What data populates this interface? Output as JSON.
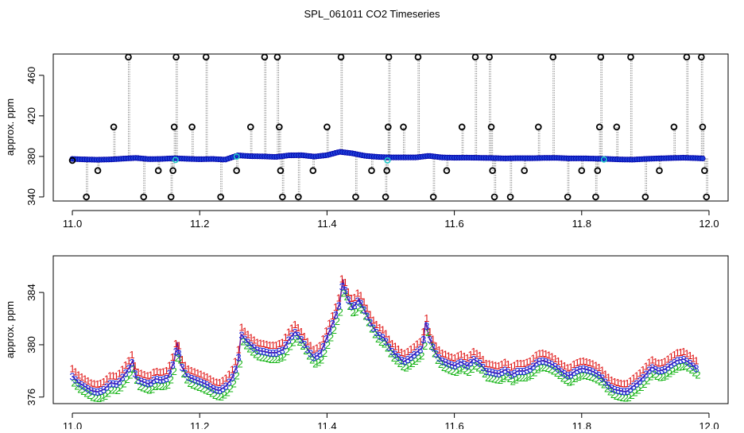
{
  "title": "SPL_061011  CO2 Timeseries",
  "colors": {
    "axis": "#000000",
    "point_fill": "#1f3fd6",
    "point_edge": "#0000aa",
    "flagged": "#22c8c8",
    "outlier": "#000000",
    "spike_line": "#999999",
    "level1": "#e01818",
    "level2": "#18b418",
    "level3": "#1c28d8",
    "connect_line": "#6a1a9a"
  },
  "chart_data": [
    {
      "type": "scatter",
      "name": "raw",
      "xlabel": "",
      "ylabel": "approx. ppm",
      "xlim": [
        10.97,
        12.03
      ],
      "ylim": [
        336,
        481
      ],
      "xticks": [
        "11.0",
        "11.2",
        "11.4",
        "11.6",
        "11.8",
        "12.0"
      ],
      "xtick_values": [
        11.0,
        11.2,
        11.4,
        11.6,
        11.8,
        12.0
      ],
      "yticks": [
        "340",
        "380",
        "420",
        "460"
      ],
      "ytick_values": [
        340,
        380,
        420,
        460
      ],
      "baseline": {
        "x": [
          11.0,
          11.02,
          11.04,
          11.06,
          11.08,
          11.1,
          11.12,
          11.14,
          11.16,
          11.18,
          11.2,
          11.22,
          11.24,
          11.26,
          11.28,
          11.3,
          11.32,
          11.34,
          11.36,
          11.38,
          11.4,
          11.42,
          11.44,
          11.46,
          11.48,
          11.5,
          11.52,
          11.54,
          11.56,
          11.58,
          11.6,
          11.62,
          11.64,
          11.66,
          11.68,
          11.7,
          11.72,
          11.74,
          11.76,
          11.78,
          11.8,
          11.82,
          11.84,
          11.86,
          11.88,
          11.9,
          11.92,
          11.94,
          11.96,
          11.98,
          11.99
        ],
        "y": [
          377.5,
          377.0,
          376.7,
          377.0,
          377.8,
          378.5,
          377.3,
          377.5,
          378.2,
          377.6,
          377.2,
          377.5,
          376.8,
          381.0,
          380.2,
          380.0,
          379.5,
          381.0,
          381.2,
          379.8,
          381.2,
          384.5,
          383.0,
          380.5,
          379.5,
          379.0,
          379.0,
          379.0,
          380.5,
          379.0,
          378.7,
          378.8,
          378.6,
          378.4,
          378.0,
          378.3,
          378.2,
          378.5,
          378.6,
          378.0,
          378.1,
          377.8,
          377.5,
          377.0,
          376.8,
          377.5,
          378.0,
          378.4,
          378.7,
          378.3,
          378.0
        ]
      },
      "outliers": [
        {
          "x": 11.0,
          "y": 376
        },
        {
          "x": 11.022,
          "y": 340
        },
        {
          "x": 11.04,
          "y": 366
        },
        {
          "x": 11.065,
          "y": 409
        },
        {
          "x": 11.088,
          "y": 478
        },
        {
          "x": 11.112,
          "y": 340
        },
        {
          "x": 11.135,
          "y": 366
        },
        {
          "x": 11.155,
          "y": 340
        },
        {
          "x": 11.158,
          "y": 366
        },
        {
          "x": 11.16,
          "y": 409
        },
        {
          "x": 11.163,
          "y": 478
        },
        {
          "x": 11.188,
          "y": 409
        },
        {
          "x": 11.21,
          "y": 478
        },
        {
          "x": 11.233,
          "y": 340
        },
        {
          "x": 11.258,
          "y": 366
        },
        {
          "x": 11.28,
          "y": 409
        },
        {
          "x": 11.302,
          "y": 478
        },
        {
          "x": 11.322,
          "y": 478
        },
        {
          "x": 11.325,
          "y": 409
        },
        {
          "x": 11.327,
          "y": 366
        },
        {
          "x": 11.33,
          "y": 340
        },
        {
          "x": 11.355,
          "y": 340
        },
        {
          "x": 11.378,
          "y": 366
        },
        {
          "x": 11.4,
          "y": 409
        },
        {
          "x": 11.422,
          "y": 478
        },
        {
          "x": 11.445,
          "y": 340
        },
        {
          "x": 11.47,
          "y": 366
        },
        {
          "x": 11.492,
          "y": 340
        },
        {
          "x": 11.494,
          "y": 366
        },
        {
          "x": 11.496,
          "y": 409
        },
        {
          "x": 11.497,
          "y": 478
        },
        {
          "x": 11.52,
          "y": 409
        },
        {
          "x": 11.543,
          "y": 478
        },
        {
          "x": 11.567,
          "y": 340
        },
        {
          "x": 11.588,
          "y": 366
        },
        {
          "x": 11.612,
          "y": 409
        },
        {
          "x": 11.633,
          "y": 478
        },
        {
          "x": 11.655,
          "y": 478
        },
        {
          "x": 11.658,
          "y": 409
        },
        {
          "x": 11.66,
          "y": 366
        },
        {
          "x": 11.663,
          "y": 340
        },
        {
          "x": 11.688,
          "y": 340
        },
        {
          "x": 11.71,
          "y": 366
        },
        {
          "x": 11.732,
          "y": 409
        },
        {
          "x": 11.755,
          "y": 478
        },
        {
          "x": 11.778,
          "y": 340
        },
        {
          "x": 11.8,
          "y": 366
        },
        {
          "x": 11.822,
          "y": 340
        },
        {
          "x": 11.825,
          "y": 366
        },
        {
          "x": 11.828,
          "y": 409
        },
        {
          "x": 11.83,
          "y": 478
        },
        {
          "x": 11.855,
          "y": 409
        },
        {
          "x": 11.877,
          "y": 478
        },
        {
          "x": 11.9,
          "y": 340
        },
        {
          "x": 11.922,
          "y": 366
        },
        {
          "x": 11.945,
          "y": 409
        },
        {
          "x": 11.965,
          "y": 478
        },
        {
          "x": 11.988,
          "y": 478
        },
        {
          "x": 11.99,
          "y": 409
        },
        {
          "x": 11.993,
          "y": 366
        },
        {
          "x": 11.996,
          "y": 340
        }
      ],
      "flagged": [
        {
          "x": 11.162,
          "y": 376.5
        },
        {
          "x": 11.258,
          "y": 379.8
        },
        {
          "x": 11.495,
          "y": 376.0
        },
        {
          "x": 11.835,
          "y": 377.0
        }
      ]
    },
    {
      "type": "line",
      "name": "detail",
      "xlabel": "",
      "ylabel": "approx. ppm",
      "xlim": [
        10.97,
        12.03
      ],
      "ylim": [
        375.5,
        386.8
      ],
      "xticks": [
        "11.0",
        "11.2",
        "11.4",
        "11.6",
        "11.8",
        "12.0"
      ],
      "xtick_values": [
        11.0,
        11.2,
        11.4,
        11.6,
        11.8,
        12.0
      ],
      "yticks": [
        "376",
        "380",
        "384"
      ],
      "ytick_values": [
        376,
        380,
        384
      ],
      "x": [
        11.0,
        11.01,
        11.02,
        11.03,
        11.04,
        11.05,
        11.06,
        11.07,
        11.08,
        11.09,
        11.095,
        11.1,
        11.11,
        11.12,
        11.13,
        11.14,
        11.15,
        11.16,
        11.165,
        11.17,
        11.18,
        11.19,
        11.2,
        11.21,
        11.22,
        11.23,
        11.24,
        11.25,
        11.26,
        11.265,
        11.27,
        11.28,
        11.29,
        11.3,
        11.31,
        11.32,
        11.33,
        11.34,
        11.35,
        11.36,
        11.37,
        11.38,
        11.39,
        11.4,
        11.41,
        11.42,
        11.425,
        11.43,
        11.44,
        11.45,
        11.46,
        11.47,
        11.48,
        11.49,
        11.5,
        11.51,
        11.52,
        11.53,
        11.54,
        11.55,
        11.555,
        11.56,
        11.57,
        11.58,
        11.59,
        11.6,
        11.61,
        11.62,
        11.63,
        11.64,
        11.65,
        11.66,
        11.67,
        11.68,
        11.69,
        11.7,
        11.71,
        11.72,
        11.73,
        11.74,
        11.75,
        11.76,
        11.77,
        11.78,
        11.79,
        11.8,
        11.81,
        11.82,
        11.83,
        11.84,
        11.85,
        11.86,
        11.87,
        11.88,
        11.89,
        11.9,
        11.91,
        11.92,
        11.93,
        11.94,
        11.95,
        11.96,
        11.97,
        11.98
      ],
      "y": [
        377.6,
        377.1,
        376.8,
        376.5,
        376.4,
        376.6,
        377.1,
        377.0,
        377.6,
        378.3,
        378.8,
        377.4,
        377.2,
        377.0,
        377.4,
        377.3,
        377.5,
        378.8,
        380.2,
        378.5,
        377.6,
        377.4,
        377.2,
        377.0,
        376.7,
        376.5,
        376.8,
        377.4,
        378.6,
        380.8,
        380.5,
        380.0,
        379.6,
        379.5,
        379.4,
        379.4,
        379.6,
        380.4,
        381.0,
        380.4,
        379.6,
        379.0,
        379.4,
        380.6,
        381.8,
        383.2,
        385.0,
        383.8,
        382.8,
        383.5,
        382.5,
        381.5,
        380.8,
        380.5,
        379.6,
        379.2,
        378.7,
        379.0,
        379.4,
        379.8,
        381.8,
        380.6,
        379.4,
        378.8,
        378.6,
        378.4,
        378.7,
        378.4,
        378.9,
        378.6,
        378.0,
        377.9,
        377.8,
        378.1,
        377.7,
        378.0,
        378.0,
        378.2,
        378.7,
        378.8,
        378.6,
        378.3,
        377.9,
        377.6,
        378.0,
        378.2,
        378.1,
        377.9,
        377.6,
        377.0,
        376.6,
        376.5,
        376.4,
        376.8,
        377.2,
        377.7,
        378.3,
        378.0,
        378.1,
        378.5,
        378.8,
        378.9,
        378.6,
        378.2
      ]
    }
  ]
}
